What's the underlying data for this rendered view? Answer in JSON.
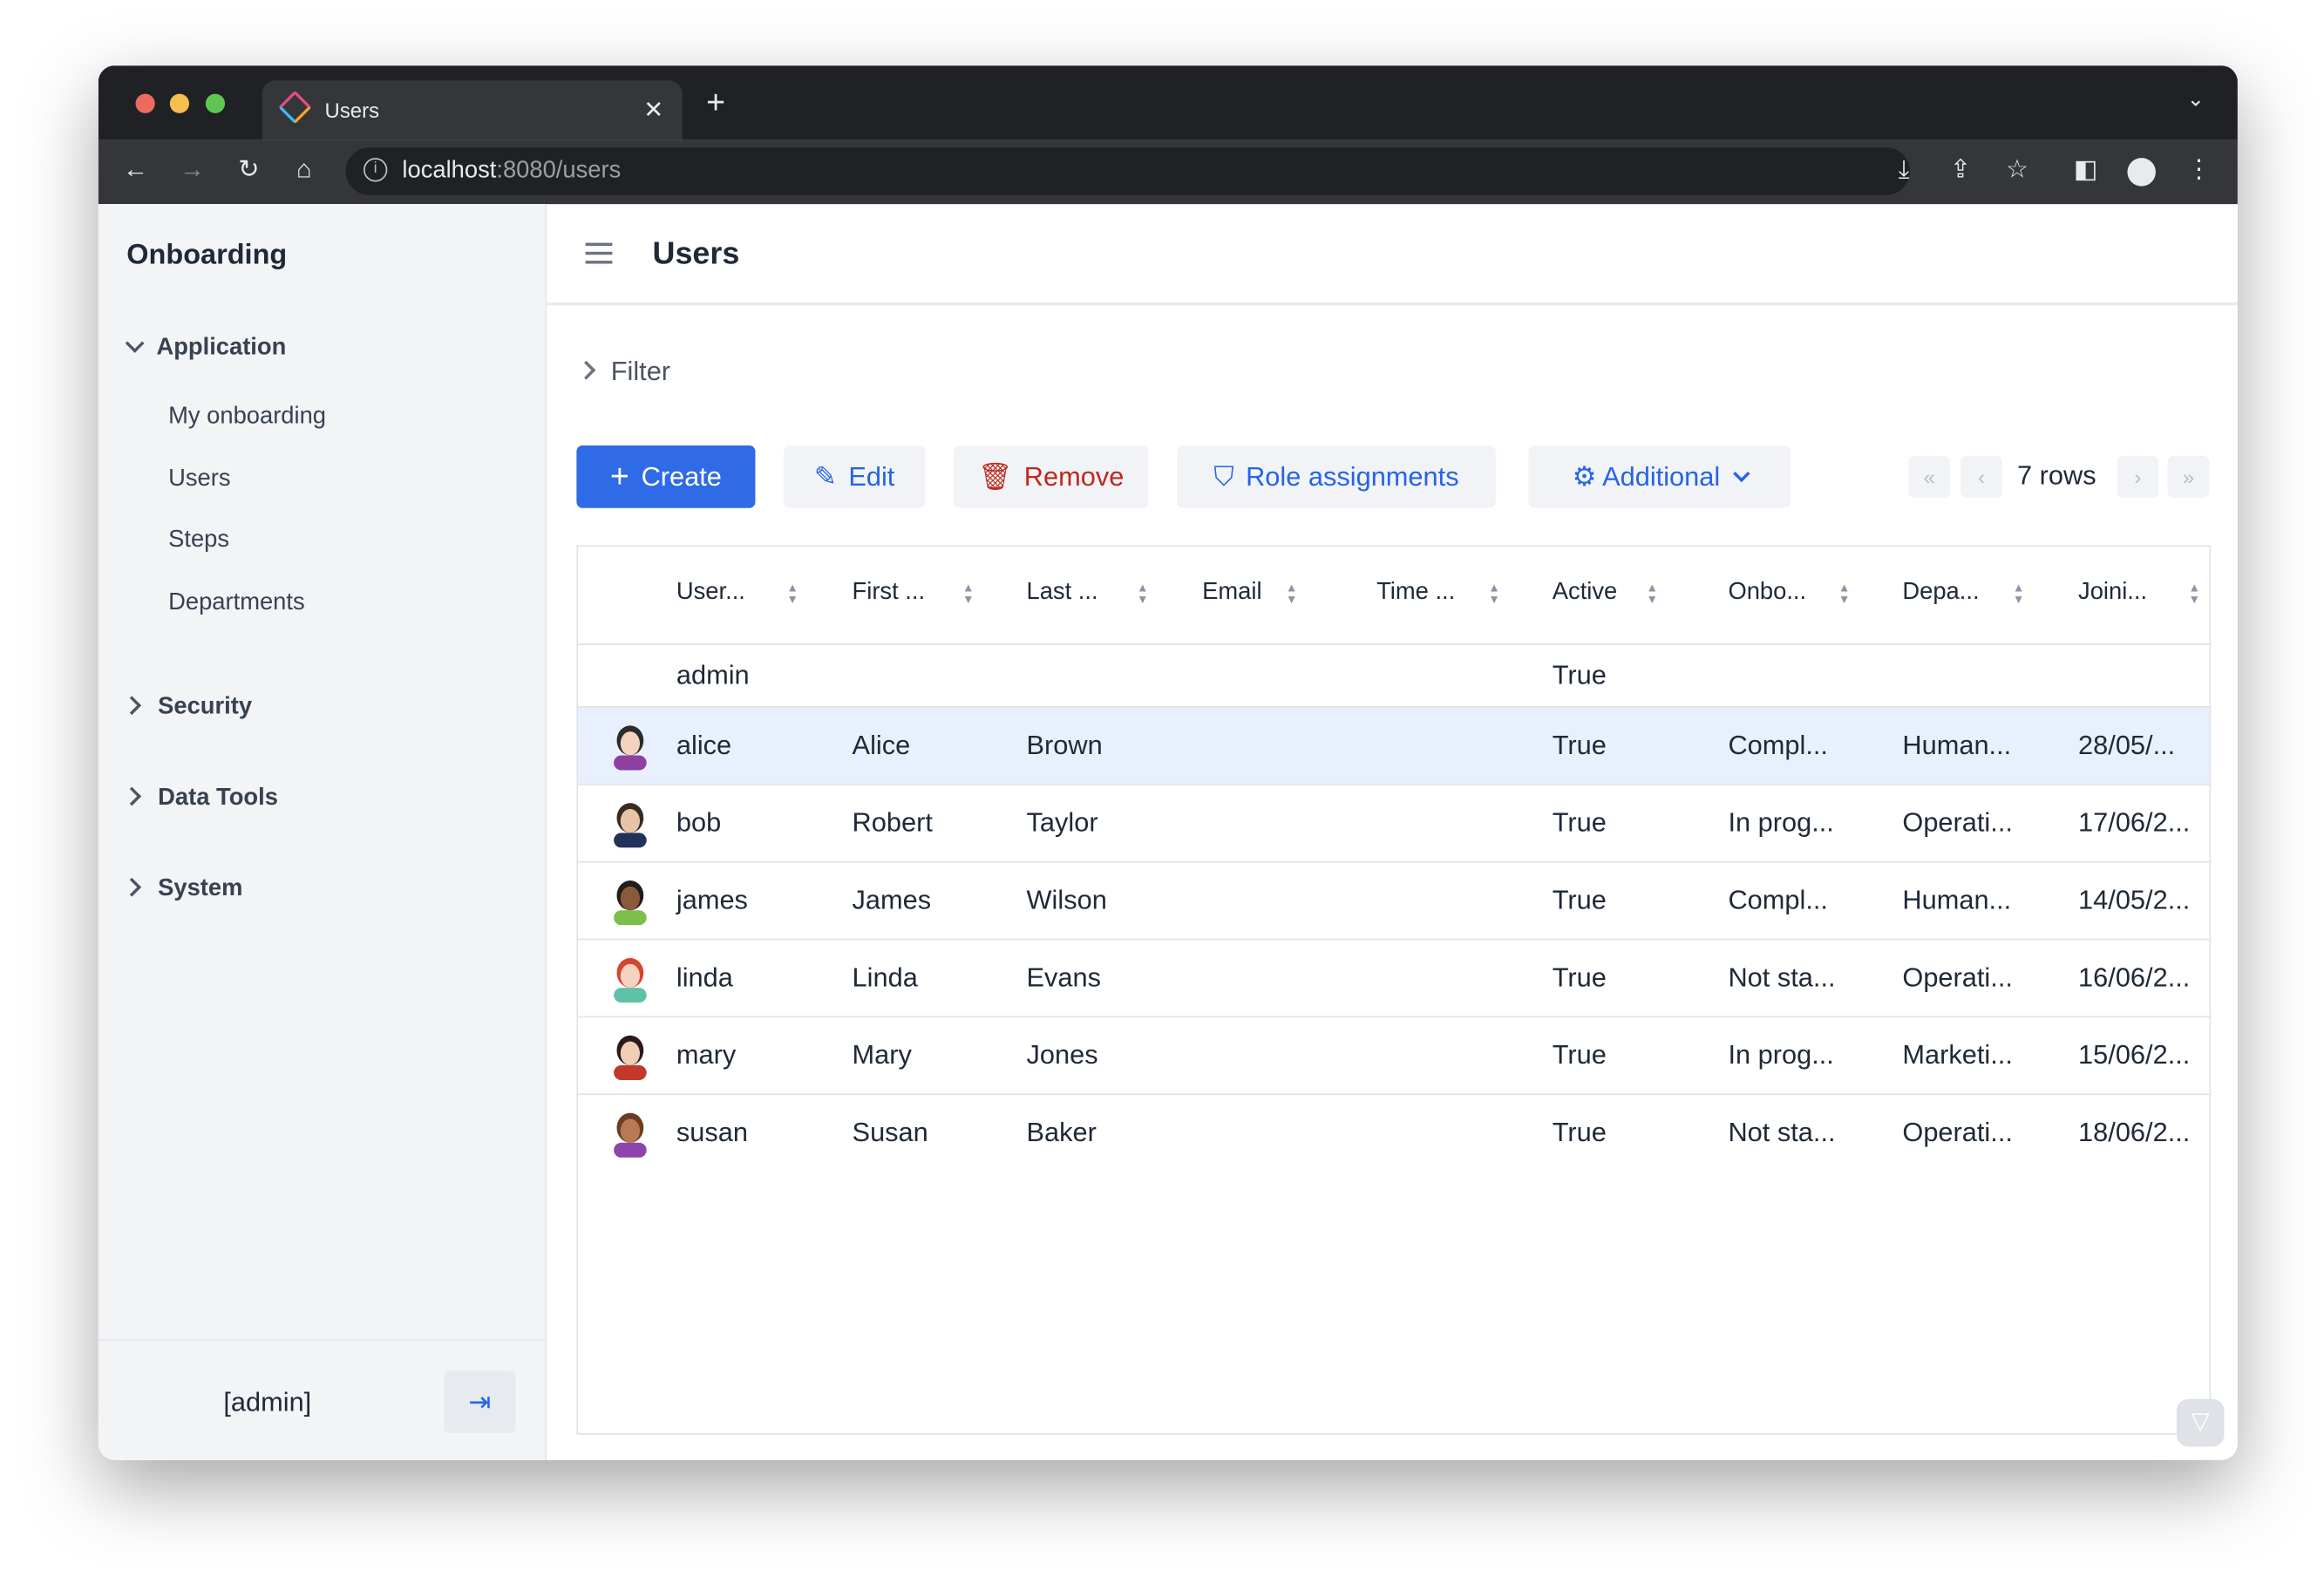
{
  "browser": {
    "tab_title": "Users",
    "url_host": "localhost",
    "url_rest": ":8080/users"
  },
  "sidebar": {
    "app_title": "Onboarding",
    "groups": [
      {
        "label": "Application",
        "expanded": true,
        "items": [
          {
            "label": "My onboarding"
          },
          {
            "label": "Users"
          },
          {
            "label": "Steps"
          },
          {
            "label": "Departments"
          }
        ]
      },
      {
        "label": "Security",
        "expanded": false
      },
      {
        "label": "Data Tools",
        "expanded": false
      },
      {
        "label": "System",
        "expanded": false
      }
    ],
    "user": "[admin]"
  },
  "header": {
    "title": "Users"
  },
  "filter": {
    "label": "Filter"
  },
  "toolbar": {
    "create": "Create",
    "edit": "Edit",
    "remove": "Remove",
    "role_assignments": "Role assignments",
    "additional": "Additional"
  },
  "pagination": {
    "rows": "7 rows"
  },
  "colors": {
    "primary": "#2f6be6",
    "danger": "#c0281f",
    "selected_row": "#e8f0fd"
  },
  "table": {
    "columns": [
      "User...",
      "First ...",
      "Last ...",
      "Email",
      "Time ...",
      "Active",
      "Onbo...",
      "Depa...",
      "Joini..."
    ],
    "rows": [
      {
        "user": "admin",
        "first": "",
        "last": "",
        "active": "True",
        "onbo": "",
        "depa": "",
        "joini": "",
        "avatar": null
      },
      {
        "user": "alice",
        "first": "Alice",
        "last": "Brown",
        "active": "True",
        "onbo": "Compl...",
        "depa": "Human...",
        "joini": "28/05/...",
        "avatar": "woman-dark-hair",
        "selected": true
      },
      {
        "user": "bob",
        "first": "Robert",
        "last": "Taylor",
        "active": "True",
        "onbo": "In prog...",
        "depa": "Operati...",
        "joini": "17/06/2...",
        "avatar": "man-beard"
      },
      {
        "user": "james",
        "first": "James",
        "last": "Wilson",
        "active": "True",
        "onbo": "Compl...",
        "depa": "Human...",
        "joini": "14/05/2...",
        "avatar": "man-dark"
      },
      {
        "user": "linda",
        "first": "Linda",
        "last": "Evans",
        "active": "True",
        "onbo": "Not sta...",
        "depa": "Operati...",
        "joini": "16/06/2...",
        "avatar": "woman-red-hair"
      },
      {
        "user": "mary",
        "first": "Mary",
        "last": "Jones",
        "active": "True",
        "onbo": "In prog...",
        "depa": "Marketi...",
        "joini": "15/06/2...",
        "avatar": "woman-glasses"
      },
      {
        "user": "susan",
        "first": "Susan",
        "last": "Baker",
        "active": "True",
        "onbo": "Not sta...",
        "depa": "Operati...",
        "joini": "18/06/2...",
        "avatar": "woman-brown"
      }
    ]
  }
}
